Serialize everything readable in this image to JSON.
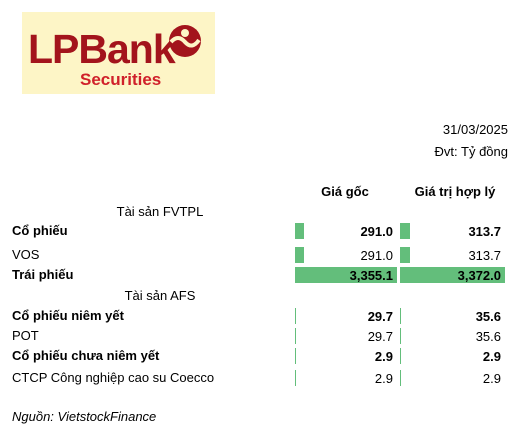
{
  "logo": {
    "name": "LPBank",
    "sub": "Securities"
  },
  "header": {
    "date": "31/03/2025",
    "unit": "Đvt: Tỷ đồng"
  },
  "columns": [
    "Giá gốc",
    "Giá trị hợp lý"
  ],
  "bar_color": "#63be7b",
  "rows": [
    {
      "section": "Tài sản FVTPL"
    },
    {
      "label": "Cổ phiếu",
      "bold": true,
      "values": [
        291.0,
        313.7
      ],
      "value_labels": [
        "291.0",
        "313.7"
      ]
    },
    {
      "label": "VOS",
      "bold": false,
      "values": [
        291.0,
        313.7
      ],
      "value_labels": [
        "291.0",
        "313.7"
      ]
    },
    {
      "label": "Trái phiếu",
      "bold": true,
      "values": [
        3355.1,
        3372.0
      ],
      "value_labels": [
        "3,355.1",
        "3,372.0"
      ]
    },
    {
      "section": "Tài sản AFS"
    },
    {
      "label": "Cổ phiếu niêm yết",
      "bold": true,
      "values": [
        29.7,
        35.6
      ],
      "value_labels": [
        "29.7",
        "35.6"
      ]
    },
    {
      "label": "POT",
      "bold": false,
      "values": [
        29.7,
        35.6
      ],
      "value_labels": [
        "29.7",
        "35.6"
      ]
    },
    {
      "label": "Cổ phiếu chưa niêm yết",
      "bold": true,
      "values": [
        2.9,
        2.9
      ],
      "value_labels": [
        "2.9",
        "2.9"
      ]
    },
    {
      "label": "CTCP Công nghiệp cao su Coecco",
      "bold": false,
      "values": [
        2.9,
        2.9
      ],
      "value_labels": [
        "2.9",
        "2.9"
      ]
    }
  ],
  "source": "Nguồn: VietstockFinance"
}
